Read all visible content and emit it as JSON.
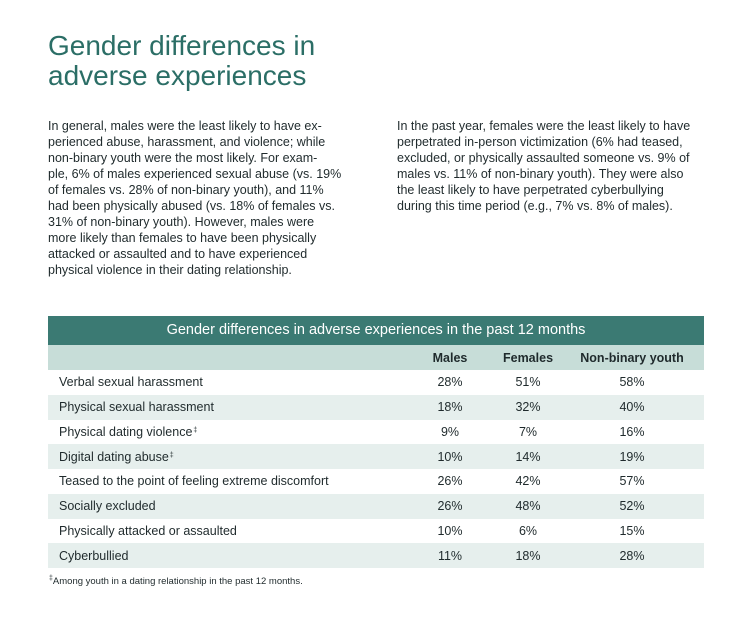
{
  "heading": {
    "line1": "Gender differences in",
    "line2": "adverse experiences"
  },
  "intro_left": [
    "In general, males were the least likely to have ex-",
    "perienced abuse, harassment, and violence; while",
    "non-binary youth were the most likely. For exam-",
    "ple, 6% of males experienced sexual abuse (vs. 19%",
    "of females vs. 28% of non-binary youth), and 11%",
    "had been physically abused (vs. 18% of females vs.",
    "31% of non-binary youth). However, males were",
    "more likely than females to have been physically",
    "attacked or assaulted and to have experienced",
    "physical violence in their dating relationship."
  ],
  "intro_right": [
    "In the past year, females were the least likely to have",
    "perpetrated in-person victimization (6% had teased,",
    "excluded, or physically assaulted someone vs. 9% of",
    "males vs. 11% of non-binary youth). They were also",
    "the least likely to have perpetrated cyberbullying",
    "during this time period (e.g., 7% vs. 8% of males)."
  ],
  "table": {
    "title": "Gender differences in adverse experiences in the past 12 months",
    "columns": [
      "Males",
      "Females",
      "Non-binary youth"
    ],
    "rows": [
      {
        "label": "Verbal sexual harassment",
        "mark": "",
        "values": [
          "28%",
          "51%",
          "58%"
        ]
      },
      {
        "label": "Physical sexual harassment",
        "mark": "",
        "values": [
          "18%",
          "32%",
          "40%"
        ]
      },
      {
        "label": "Physical dating violence",
        "mark": "‡",
        "values": [
          "9%",
          "7%",
          "16%"
        ]
      },
      {
        "label": "Digital dating abuse",
        "mark": "‡",
        "values": [
          "10%",
          "14%",
          "19%"
        ]
      },
      {
        "label": "Teased to the point of feeling extreme discomfort",
        "mark": "",
        "values": [
          "26%",
          "42%",
          "57%"
        ]
      },
      {
        "label": "Socially excluded",
        "mark": "",
        "values": [
          "26%",
          "48%",
          "52%"
        ]
      },
      {
        "label": "Physically attacked or assaulted",
        "mark": "",
        "values": [
          "10%",
          "6%",
          "15%"
        ]
      },
      {
        "label": "Cyberbullied",
        "mark": "",
        "values": [
          "11%",
          "18%",
          "28%"
        ]
      }
    ]
  },
  "footnote": {
    "mark": "‡",
    "text": "Among youth in a dating relationship in the past 12 months."
  },
  "colors": {
    "heading": "#2b6e66",
    "table_title_bg": "#3b7a73",
    "table_header_bg": "#c7ddd8",
    "row_shade": "#e6efed"
  }
}
